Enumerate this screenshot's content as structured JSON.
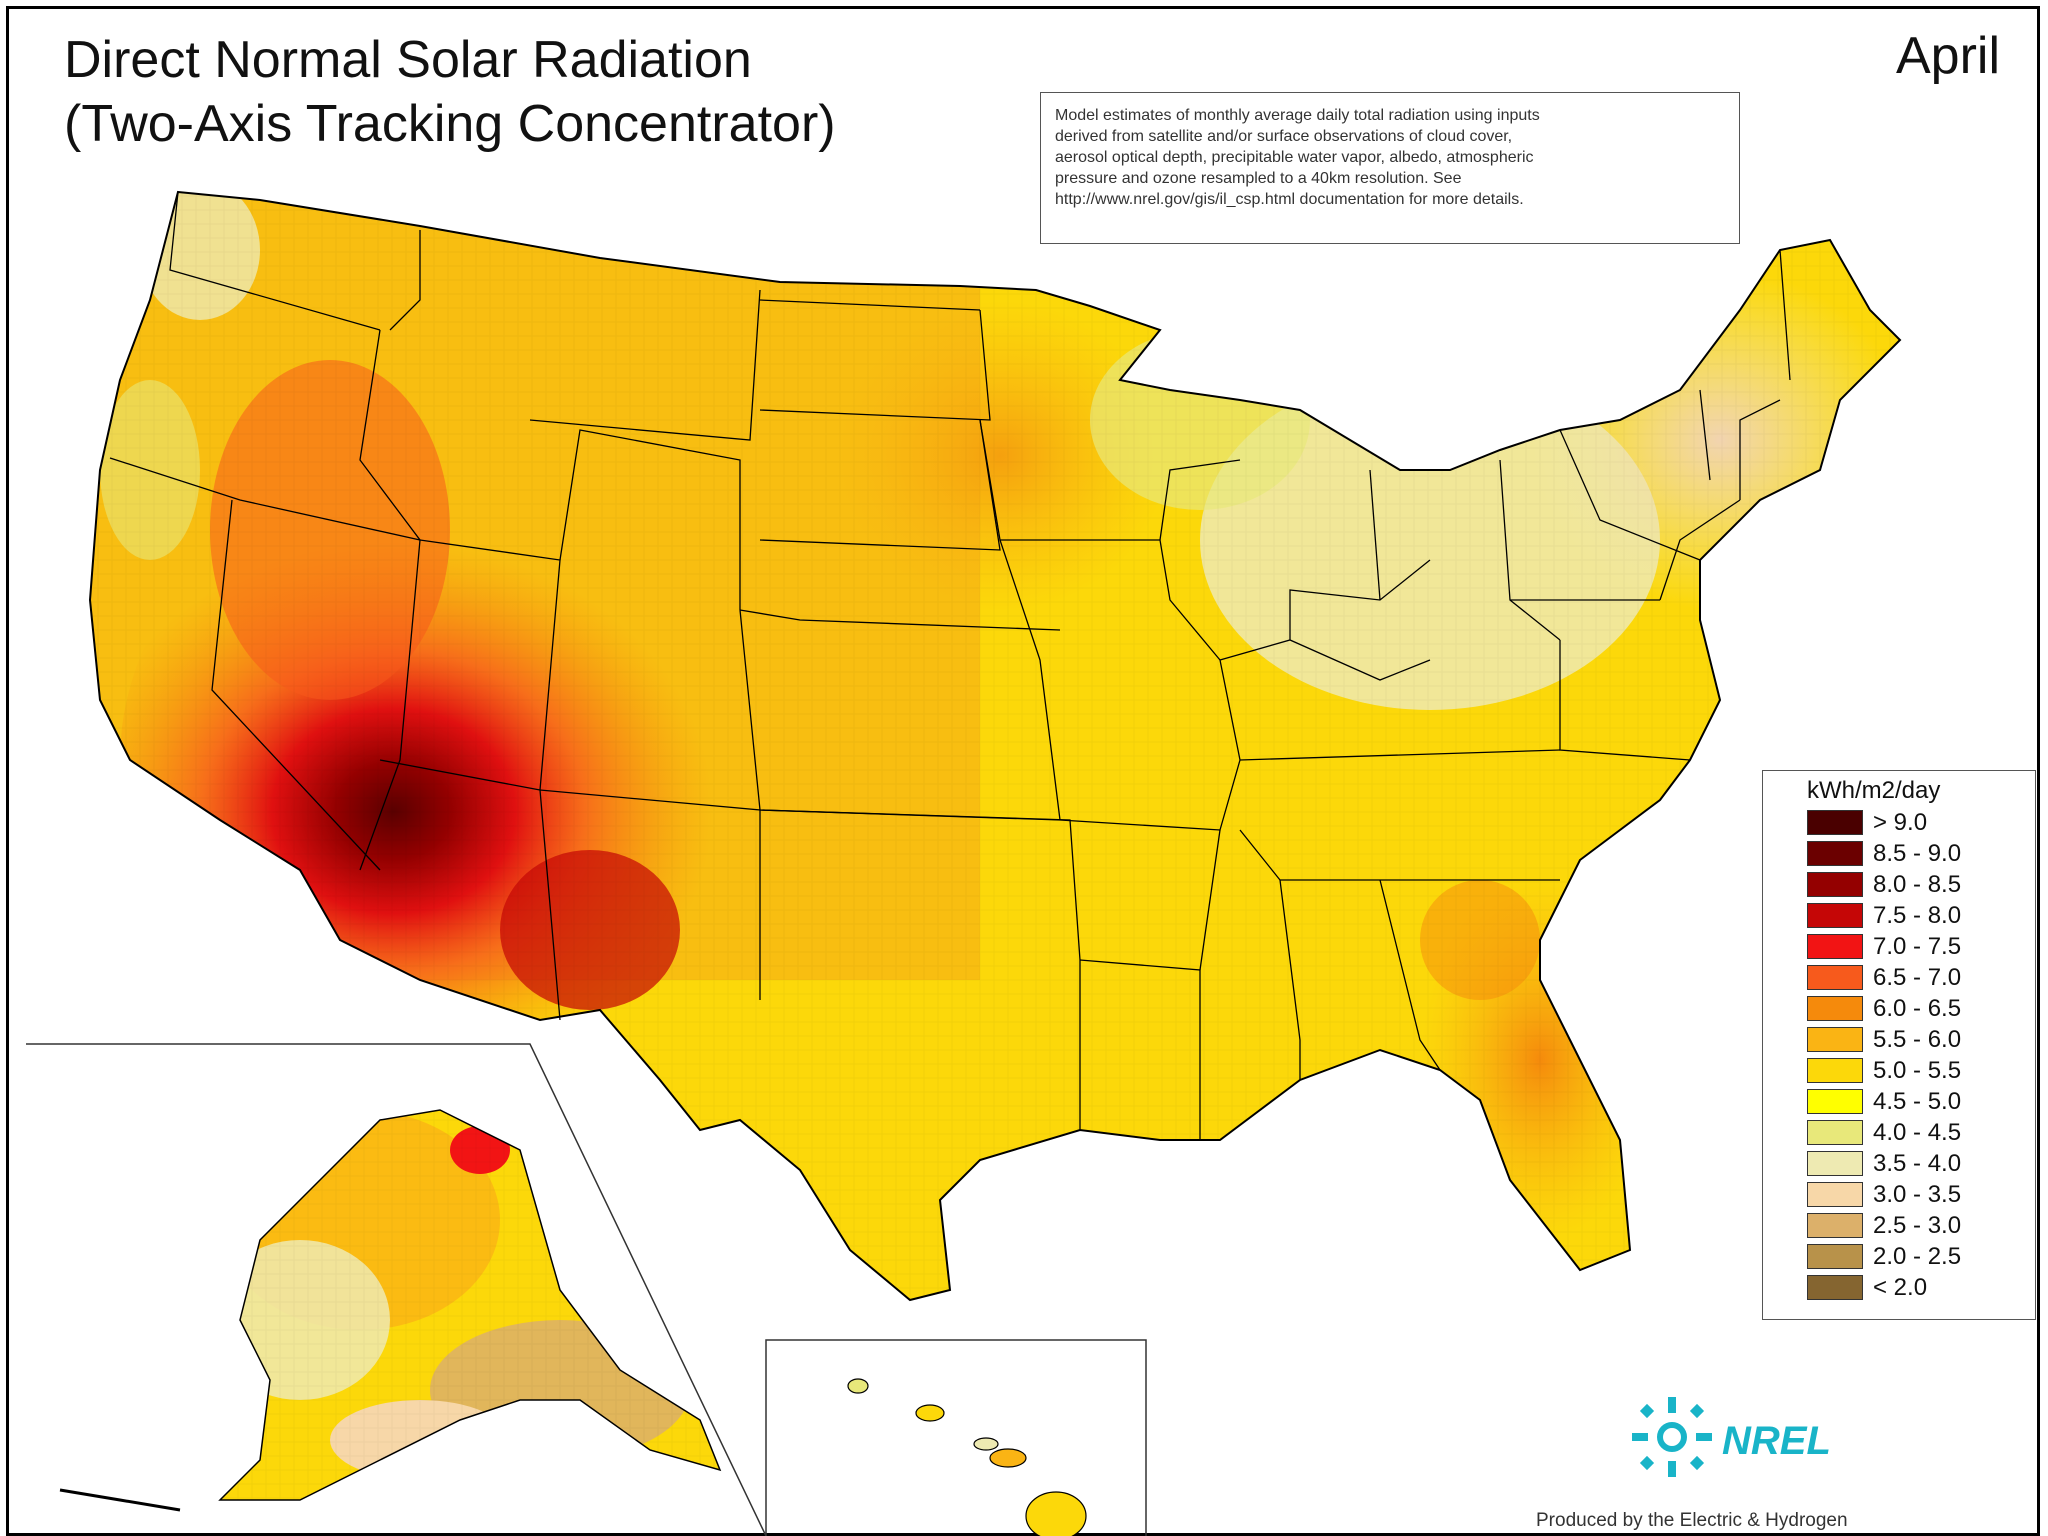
{
  "map": {
    "title_line1": "Direct Normal Solar Radiation",
    "title_line2": "(Two-Axis Tracking Concentrator)",
    "month": "April",
    "note_lines": [
      "Model estimates of monthly average daily total radiation using inputs",
      "derived from satellite and/or surface observations of cloud cover,",
      "aerosol optical depth, precipitable water vapor, albedo, atmospheric",
      "pressure and ozone resampled to a 40km resolution.  See",
      "http://www.nrel.gov/gis/il_csp.html documentation for more details."
    ],
    "legend": {
      "title": "kWh/m2/day",
      "items": [
        {
          "label": "> 9.0",
          "color": "#4a0000"
        },
        {
          "label": "8.5 - 9.0",
          "color": "#6b0000"
        },
        {
          "label": "8.0 - 8.5",
          "color": "#940000"
        },
        {
          "label": "7.5 - 8.0",
          "color": "#c50606"
        },
        {
          "label": "7.0 - 7.5",
          "color": "#f21414"
        },
        {
          "label": "6.5 - 7.0",
          "color": "#f75a1c"
        },
        {
          "label": "6.0 - 6.5",
          "color": "#f58a0c"
        },
        {
          "label": "5.5 - 6.0",
          "color": "#fab414"
        },
        {
          "label": "5.0 - 5.5",
          "color": "#fcd80a"
        },
        {
          "label": "4.5 - 5.0",
          "color": "#ffff00"
        },
        {
          "label": "4.0 - 4.5",
          "color": "#e8e87a"
        },
        {
          "label": "3.5 - 4.0",
          "color": "#eeeab2"
        },
        {
          "label": "3.0 - 3.5",
          "color": "#f7d7a8"
        },
        {
          "label": "2.5 - 3.0",
          "color": "#dcb06a"
        },
        {
          "label": "2.0 - 2.5",
          "color": "#b8924a"
        },
        {
          "label": "< 2.0",
          "color": "#856530"
        }
      ]
    },
    "logo_text": "NREL",
    "credit": "Produced by the Electric & Hydrogen"
  }
}
